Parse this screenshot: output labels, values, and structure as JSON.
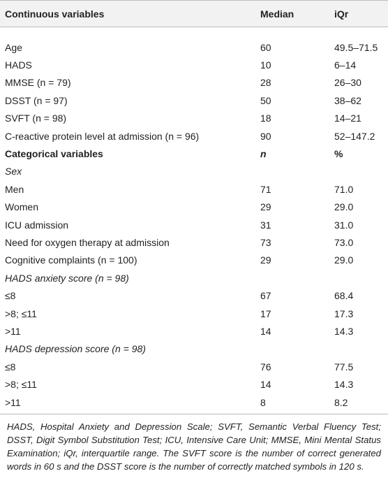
{
  "table": {
    "header": [
      "Continuous variables",
      "Median",
      "iQr"
    ],
    "rows": [
      [
        "Age",
        "60",
        "49.5–71.5"
      ],
      [
        "HADS",
        "10",
        "6–14"
      ],
      [
        "MMSE (n = 79)",
        "28",
        "26–30"
      ],
      [
        "DSST (n = 97)",
        "50",
        "38–62"
      ],
      [
        "SVFT (n = 98)",
        "18",
        "14–21"
      ],
      [
        "C-reactive protein level at admission (n = 96)",
        "90",
        "52–147.2"
      ],
      [
        "Categorical variables",
        "n",
        "%"
      ],
      [
        "Sex"
      ],
      [
        "Men",
        "71",
        "71.0"
      ],
      [
        "Women",
        "29",
        "29.0"
      ],
      [
        "ICU admission",
        "31",
        "31.0"
      ],
      [
        "Need for oxygen therapy at admission",
        "73",
        "73.0"
      ],
      [
        "Cognitive complaints (n = 100)",
        "29",
        "29.0"
      ],
      [
        "HADS anxiety score (n = 98)"
      ],
      [
        "≤8",
        "67",
        "68.4"
      ],
      [
        ">8; ≤11",
        "17",
        "17.3"
      ],
      [
        ">11",
        "14",
        "14.3"
      ],
      [
        "HADS depression score (n = 98)"
      ],
      [
        "≤8",
        "76",
        "77.5"
      ],
      [
        ">8; ≤11",
        "14",
        "14.3"
      ],
      [
        ">11",
        "8",
        "8.2"
      ]
    ],
    "footnote": "HADS, Hospital Anxiety and Depression Scale; SVFT, Semantic Verbal Fluency Test; DSST, Digit Symbol Substitution Test; ICU, Intensive Care Unit; MMSE, Mini Mental Status Examination; iQr, interquartile range. The SVFT score is the number of correct generated words in 60 s and the DSST score is the number of correctly matched symbols in 120 s."
  }
}
